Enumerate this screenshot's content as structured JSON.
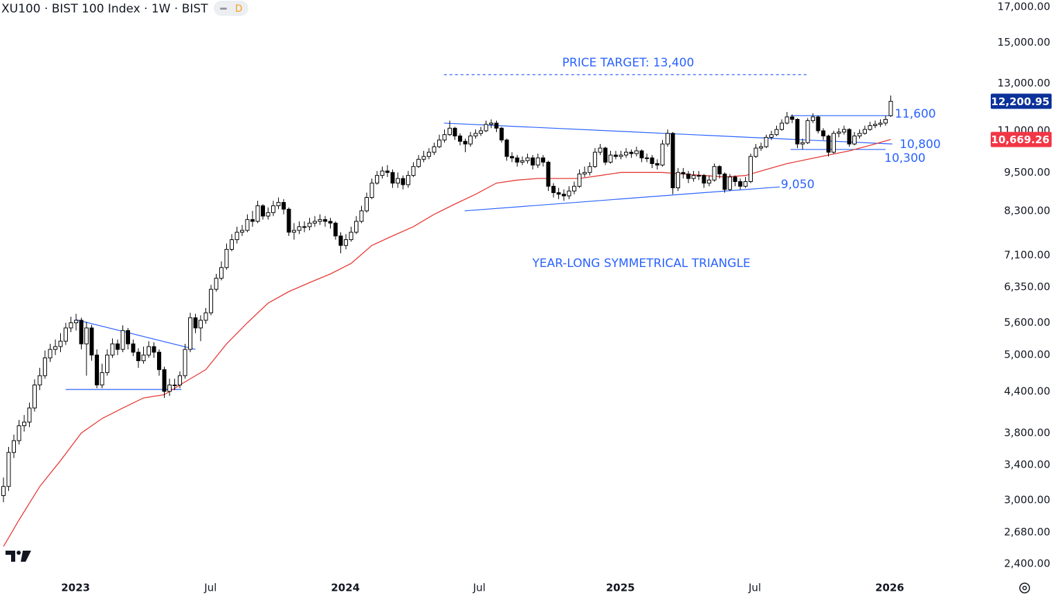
{
  "chart_data": {
    "type": "candlestick",
    "title": "XU100 · BIST 100 Index · 1W · BIST",
    "interval_badge": "D",
    "log_scale": true,
    "up_color": "#ffffff",
    "down_color": "#000000",
    "open": [
      3050,
      3150,
      3550,
      3700,
      3900,
      3950,
      4150,
      4500,
      4650,
      4950,
      5100,
      5150,
      5250,
      5500,
      5600,
      5650,
      5200,
      5500,
      5000,
      4500,
      4700,
      5000,
      5200,
      5100,
      5450,
      5200,
      5050,
      4900,
      5000,
      5150,
      5050,
      4750,
      4400,
      4500,
      4500,
      4650,
      5100,
      5700,
      5500,
      5650,
      5800,
      6300,
      6550,
      6800,
      7250,
      7500,
      7700,
      7750,
      8050,
      8000,
      8450,
      8150,
      8250,
      8450,
      8550,
      8350,
      7700,
      7750,
      7850,
      7850,
      7950,
      8000,
      8050,
      8000,
      7950,
      7600,
      7350,
      7500,
      7700,
      8000,
      8300,
      8700,
      9150,
      9400,
      9550,
      9500,
      9150,
      9300,
      9100,
      9400,
      9700,
      9950,
      10050,
      10200,
      10400,
      10650,
      10850,
      11100,
      10800,
      10600,
      10500,
      10800,
      10900,
      11000,
      11250,
      11300,
      11100,
      10650,
      10050,
      10000,
      9850,
      9900,
      10000,
      9750,
      10000,
      9850,
      9050,
      8850,
      8800,
      8750,
      8900,
      9050,
      9450,
      9500,
      9700,
      10200,
      10350,
      9850,
      10100,
      10050,
      10100,
      10200,
      10150,
      10250,
      10000,
      10000,
      9800,
      9750,
      10500,
      10900,
      9000,
      9500,
      9450,
      9300,
      9400,
      9400,
      9150,
      9250,
      9700,
      9450,
      8950,
      9350,
      9200,
      9050,
      9200,
      10050,
      10350,
      10400,
      10750,
      10850,
      11050,
      11300,
      11550,
      11450,
      10500,
      10550,
      11400,
      11550,
      11000,
      10800,
      10200,
      10900,
      10950,
      11050,
      10500,
      10800,
      10900,
      11050,
      11200,
      11250,
      11300,
      11600
    ],
    "high": [
      3250,
      3620,
      3780,
      3980,
      4050,
      4230,
      4590,
      4780,
      5080,
      5200,
      5280,
      5400,
      5600,
      5720,
      5780,
      5700,
      5620,
      5560,
      5100,
      4850,
      5100,
      5300,
      5280,
      5550,
      5500,
      5280,
      5120,
      5150,
      5250,
      5230,
      5100,
      4800,
      4600,
      4600,
      4720,
      5200,
      5800,
      5780,
      5750,
      5900,
      6400,
      6650,
      6950,
      7400,
      7650,
      7850,
      7900,
      8200,
      8300,
      8600,
      8500,
      8400,
      8600,
      8700,
      8650,
      8400,
      7950,
      8000,
      8000,
      8100,
      8150,
      8200,
      8150,
      8100,
      8000,
      7700,
      7650,
      7850,
      8150,
      8450,
      8850,
      9300,
      9550,
      9700,
      9750,
      9600,
      9500,
      9400,
      9550,
      9850,
      10100,
      10250,
      10350,
      10550,
      10850,
      11050,
      11400,
      11150,
      10900,
      10700,
      10950,
      11050,
      11150,
      11400,
      11450,
      11400,
      11150,
      10700,
      10200,
      10100,
      10050,
      10150,
      10100,
      10150,
      10100,
      9900,
      9150,
      9000,
      8950,
      9050,
      9200,
      9600,
      9700,
      9850,
      10350,
      10500,
      10400,
      10250,
      10250,
      10250,
      10350,
      10300,
      10400,
      10300,
      10150,
      10100,
      9950,
      10650,
      11050,
      10950,
      9650,
      9650,
      9550,
      9550,
      9550,
      9450,
      9400,
      9800,
      9750,
      9500,
      9450,
      9400,
      9300,
      9350,
      10150,
      10500,
      10550,
      10850,
      11000,
      11200,
      11450,
      11750,
      11650,
      11500,
      10700,
      11500,
      11700,
      11600,
      11100,
      10850,
      11000,
      11100,
      11200,
      11100,
      10950,
      11050,
      11200,
      11350,
      11400,
      11450,
      11600,
      12450
    ],
    "low": [
      2980,
      3100,
      3480,
      3650,
      3820,
      3880,
      4100,
      4420,
      4600,
      4880,
      5000,
      5050,
      5180,
      5420,
      5450,
      5100,
      4650,
      4900,
      4450,
      4450,
      4650,
      4950,
      5000,
      5050,
      5100,
      4980,
      4780,
      4850,
      4950,
      4950,
      4650,
      4300,
      4330,
      4420,
      4450,
      4600,
      5050,
      5400,
      5250,
      5580,
      5750,
      6250,
      6500,
      6750,
      7200,
      7400,
      7600,
      7700,
      7850,
      7950,
      8050,
      8050,
      8150,
      8350,
      8200,
      7600,
      7500,
      7650,
      7700,
      7750,
      7850,
      7900,
      7850,
      7800,
      7500,
      7150,
      7250,
      7450,
      7650,
      7950,
      8250,
      8650,
      9100,
      9300,
      9350,
      9000,
      9000,
      8950,
      9000,
      9350,
      9650,
      9850,
      9950,
      10100,
      10350,
      10550,
      10800,
      10650,
      10450,
      10200,
      10400,
      10700,
      10800,
      10950,
      11100,
      10950,
      10550,
      9900,
      9850,
      9700,
      9750,
      9800,
      9600,
      9650,
      9700,
      8900,
      8700,
      8650,
      8600,
      8650,
      8800,
      9000,
      9350,
      9400,
      9650,
      10100,
      9750,
      9800,
      9950,
      9950,
      10000,
      10000,
      10050,
      9850,
      9850,
      9650,
      9600,
      9700,
      10400,
      8800,
      8900,
      9300,
      9150,
      9200,
      9250,
      9000,
      9050,
      9200,
      9300,
      8850,
      8900,
      9050,
      8950,
      9000,
      9150,
      10000,
      10250,
      10350,
      10650,
      10800,
      11000,
      11250,
      11300,
      10350,
      10300,
      10500,
      11300,
      10900,
      10650,
      10050,
      10150,
      10750,
      10850,
      10400,
      10450,
      10700,
      10850,
      11000,
      11100,
      11150,
      11200,
      11550
    ],
    "close": [
      3150,
      3550,
      3700,
      3900,
      3950,
      4150,
      4500,
      4650,
      4950,
      5100,
      5150,
      5250,
      5500,
      5600,
      5650,
      5200,
      5500,
      5000,
      4500,
      4700,
      5000,
      5200,
      5100,
      5450,
      5200,
      5050,
      4900,
      5000,
      5150,
      5050,
      4750,
      4400,
      4500,
      4500,
      4650,
      5100,
      5700,
      5500,
      5650,
      5800,
      6300,
      6550,
      6800,
      7250,
      7500,
      7700,
      7750,
      8050,
      8000,
      8450,
      8150,
      8250,
      8450,
      8550,
      8350,
      7700,
      7750,
      7850,
      7850,
      7950,
      8000,
      8050,
      8000,
      7950,
      7600,
      7350,
      7500,
      7700,
      8000,
      8300,
      8700,
      9150,
      9400,
      9550,
      9500,
      9150,
      9300,
      9100,
      9400,
      9700,
      9950,
      10050,
      10200,
      10400,
      10650,
      10850,
      11100,
      10800,
      10600,
      10500,
      10800,
      10900,
      11000,
      11250,
      11300,
      11100,
      10650,
      10050,
      10000,
      9850,
      9900,
      10000,
      9750,
      10000,
      9850,
      9050,
      8850,
      8800,
      8750,
      8900,
      9050,
      9450,
      9500,
      9700,
      10200,
      10350,
      9850,
      10100,
      10050,
      10100,
      10200,
      10150,
      10250,
      10000,
      10000,
      9800,
      9750,
      10500,
      10900,
      9000,
      9500,
      9450,
      9300,
      9400,
      9400,
      9150,
      9250,
      9700,
      9450,
      8950,
      9350,
      9200,
      9050,
      9200,
      10050,
      10350,
      10400,
      10750,
      10850,
      11050,
      11300,
      11550,
      11450,
      10500,
      10550,
      11400,
      11550,
      11000,
      10800,
      10200,
      10900,
      10950,
      11050,
      10500,
      10800,
      10900,
      11050,
      11200,
      11250,
      11300,
      11450,
      12200.95
    ],
    "moving_average": {
      "color": "#e53935",
      "x": [
        0,
        3,
        7,
        11,
        15,
        19,
        23,
        27,
        31,
        35,
        39,
        43,
        47,
        51,
        55,
        59,
        63,
        67,
        71,
        75,
        79,
        83,
        87,
        91,
        95,
        99,
        103,
        107,
        111,
        115,
        119,
        123,
        127,
        131,
        135,
        139,
        143,
        147,
        151,
        155,
        159,
        163,
        167,
        171
      ],
      "values": [
        2550,
        2800,
        3150,
        3450,
        3800,
        4000,
        4150,
        4300,
        4350,
        4550,
        4750,
        5200,
        5600,
        6000,
        6250,
        6450,
        6650,
        6900,
        7350,
        7600,
        7850,
        8200,
        8500,
        8800,
        9150,
        9250,
        9300,
        9300,
        9300,
        9400,
        9500,
        9500,
        9500,
        9450,
        9400,
        9350,
        9400,
        9600,
        9800,
        9950,
        10100,
        10250,
        10450,
        10669.26
      ]
    },
    "price_badges": [
      {
        "value": 12200.95,
        "label": "12,200.95",
        "color": "#0c3299"
      },
      {
        "value": 10669.26,
        "label": "10,669.26",
        "color": "#f23645"
      }
    ],
    "lines": [
      {
        "x": [
          84.9,
          155.3
        ],
        "values": [
          13400,
          13400
        ],
        "color": "#2962ff",
        "dashed": true
      },
      {
        "x": [
          84.9,
          171.3
        ],
        "values": [
          11300,
          10500
        ],
        "color": "#2962ff",
        "dashed": false
      },
      {
        "x": [
          88.9,
          149.6
        ],
        "values": [
          8300,
          9030
        ],
        "color": "#2962ff",
        "dashed": false
      },
      {
        "x": [
          151.7,
          171.3
        ],
        "values": [
          11600,
          11600
        ],
        "color": "#2962ff",
        "dashed": false
      },
      {
        "x": [
          151.7,
          170
        ],
        "values": [
          10300,
          10300
        ],
        "color": "#2962ff",
        "dashed": false
      },
      {
        "x": [
          14,
          37
        ],
        "values": [
          5660,
          5100
        ],
        "color": "#2962ff",
        "dashed": false
      },
      {
        "x": [
          12,
          34.3
        ],
        "values": [
          4430,
          4430
        ],
        "color": "#2962ff",
        "dashed": false
      }
    ],
    "annotations": [
      {
        "text": "PRICE TARGET: 13,400",
        "color": "#2962ff"
      },
      {
        "text": "11,600",
        "color": "#2962ff"
      },
      {
        "text": "10,800",
        "color": "#2962ff"
      },
      {
        "text": "10,300",
        "color": "#2962ff"
      },
      {
        "text": "9,050",
        "color": "#2962ff"
      },
      {
        "text": "YEAR-LONG SYMMETRICAL TRIANGLE",
        "color": "#2962ff"
      }
    ],
    "xlim": [
      -0.667,
      190
    ],
    "ylim": [
      2286,
      17420
    ],
    "xticks": [
      {
        "value": 13.9,
        "label": "2023"
      },
      {
        "value": 39.9,
        "label": "Jul"
      },
      {
        "value": 65.9,
        "label": "2024"
      },
      {
        "value": 91.7,
        "label": "Jul"
      },
      {
        "value": 118.9,
        "label": "2025"
      },
      {
        "value": 144.8,
        "label": "Jul"
      },
      {
        "value": 170.8,
        "label": "2026"
      }
    ],
    "yticks": [
      {
        "value": 17000,
        "label": "17,000.00"
      },
      {
        "value": 15000,
        "label": "15,000.00"
      },
      {
        "value": 13000,
        "label": "13,000.00"
      },
      {
        "value": 11000,
        "label": "11,000.00"
      },
      {
        "value": 9500,
        "label": "9,500.00"
      },
      {
        "value": 8300,
        "label": "8,300.00"
      },
      {
        "value": 7100,
        "label": "7,100.00"
      },
      {
        "value": 6350,
        "label": "6,350.00"
      },
      {
        "value": 5600,
        "label": "5,600.00"
      },
      {
        "value": 5000,
        "label": "5,000.00"
      },
      {
        "value": 4400,
        "label": "4,400.00"
      },
      {
        "value": 3800,
        "label": "3,800.00"
      },
      {
        "value": 3400,
        "label": "3,400.00"
      },
      {
        "value": 3000,
        "label": "3,000.00"
      },
      {
        "value": 2680,
        "label": "2,680.00"
      },
      {
        "value": 2400,
        "label": "2,400.00"
      }
    ]
  }
}
